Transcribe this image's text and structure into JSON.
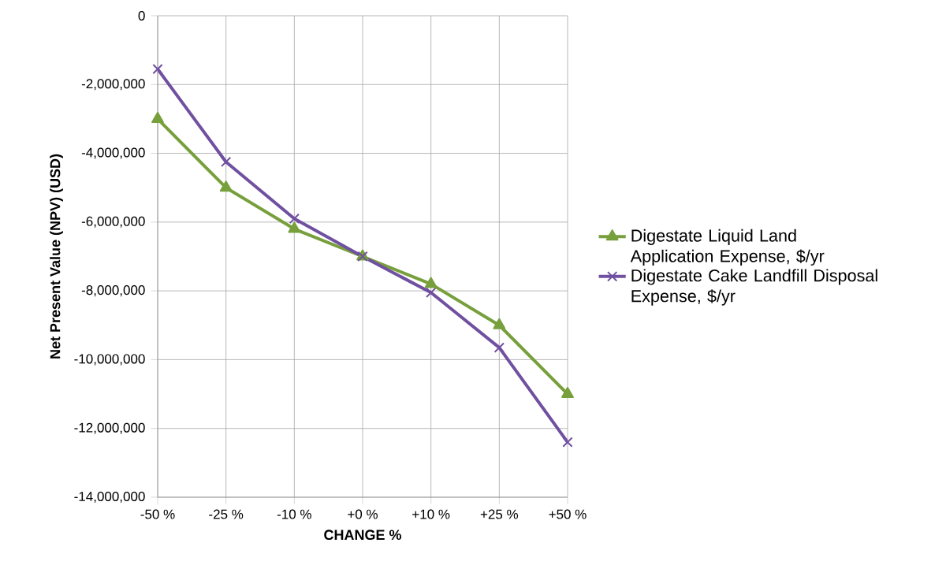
{
  "chart_data": {
    "type": "line",
    "xlabel": "CHANGE %",
    "ylabel": "Net Present Value (NPV) (USD)",
    "categories": [
      "-50 %",
      "-25 %",
      "-10 %",
      "+0 %",
      "+10 %",
      "+25 %",
      "+50 %"
    ],
    "series": [
      {
        "name": "Digestate Liquid Land Application Expense, $/yr",
        "color": "#77a03c",
        "marker": "triangle",
        "values": [
          -3000000,
          -5000000,
          -6200000,
          -7000000,
          -7800000,
          -9000000,
          -11000000
        ]
      },
      {
        "name": "Digestate Cake Landfill Disposal Expense, $/yr",
        "color": "#7050a0",
        "marker": "cross",
        "values": [
          -1550000,
          -4250000,
          -5900000,
          -7000000,
          -8050000,
          -9650000,
          -12400000
        ]
      }
    ],
    "ylim": [
      -14000000,
      0
    ],
    "yticks": [
      {
        "value": -14000000,
        "label": "-14,000,000"
      },
      {
        "value": -12000000,
        "label": "-12,000,000"
      },
      {
        "value": -10000000,
        "label": "-10,000,000"
      },
      {
        "value": -8000000,
        "label": "-8,000,000"
      },
      {
        "value": -6000000,
        "label": "-6,000,000"
      },
      {
        "value": -4000000,
        "label": "-4,000,000"
      },
      {
        "value": -2000000,
        "label": "-2,000,000"
      },
      0
    ],
    "grid": true,
    "legend": "right",
    "line_style": "solid"
  }
}
